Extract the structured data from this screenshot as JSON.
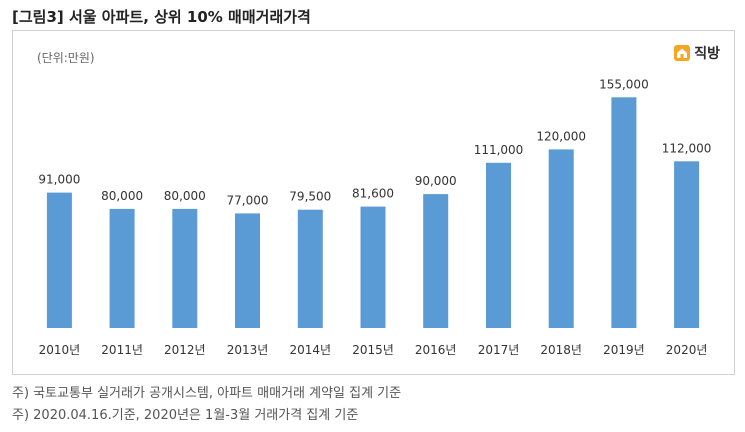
{
  "figure_title": "[그림3] 서울 아파트, 상위 10% 매매거래가격",
  "unit_label": "(단위:만원)",
  "brand": {
    "name": "직방"
  },
  "colors": {
    "bar": "#5b9bd5",
    "border": "#d0d0d0"
  },
  "notes": [
    "주) 국토교통부 실거래가 공개시스템,  아파트 매매거래 계약일 집계 기준",
    "주) 2020.04.16.기준, 2020년은 1월-3월 거래가격 집계 기준"
  ],
  "chart_data": {
    "type": "bar",
    "title": "",
    "xlabel": "",
    "ylabel": "",
    "categories": [
      "2010년",
      "2011년",
      "2012년",
      "2013년",
      "2014년",
      "2015년",
      "2016년",
      "2017년",
      "2018년",
      "2019년",
      "2020년"
    ],
    "values": [
      91000,
      80000,
      80000,
      77000,
      79500,
      81600,
      90000,
      111000,
      120000,
      155000,
      112000
    ],
    "data_labels": [
      "91,000",
      "80,000",
      "80,000",
      "77,000",
      "79,500",
      "81,600",
      "90,000",
      "111,000",
      "120,000",
      "155,000",
      "112,000"
    ],
    "ylim": [
      0,
      170000
    ],
    "grid": false,
    "legend": "none"
  }
}
